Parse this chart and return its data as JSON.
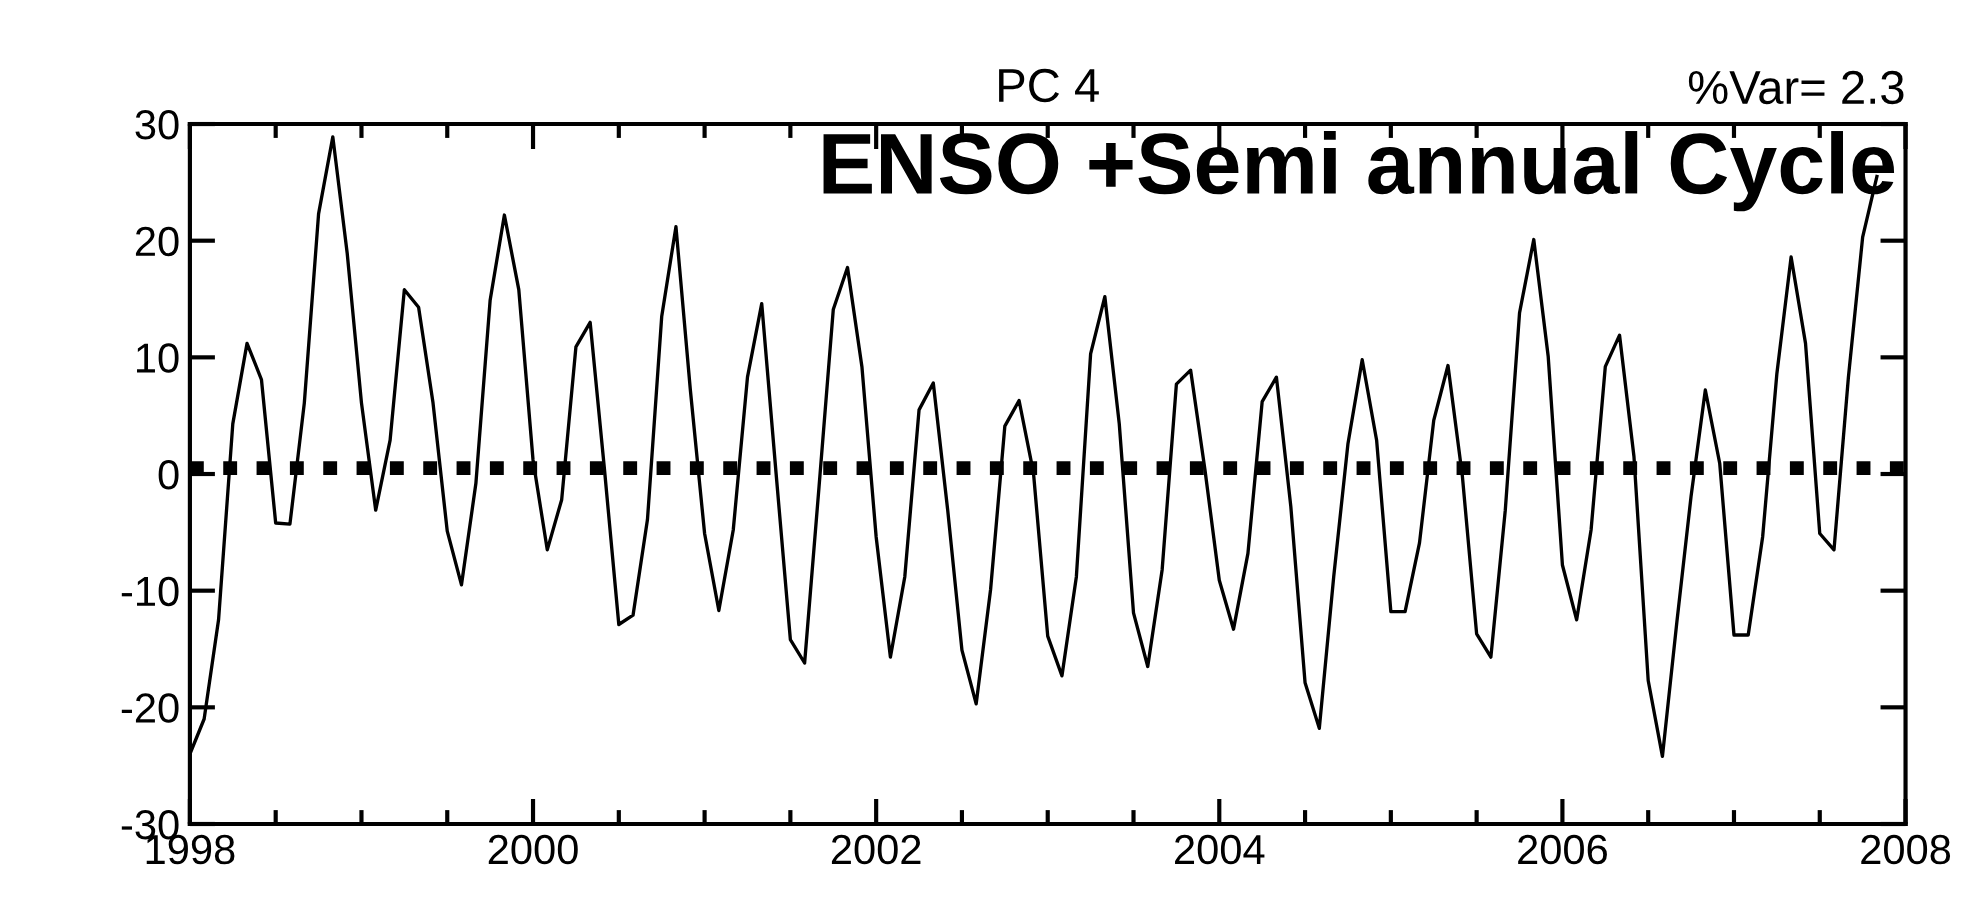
{
  "chart_data": {
    "type": "line",
    "title": "PC 4",
    "annotations": [
      "%Var= 2.3",
      "ENSO +Semi annual Cycle"
    ],
    "x": [
      1998.0,
      1998.083,
      1998.167,
      1998.25,
      1998.333,
      1998.417,
      1998.5,
      1998.583,
      1998.667,
      1998.75,
      1998.833,
      1998.917,
      1999.0,
      1999.083,
      1999.167,
      1999.25,
      1999.333,
      1999.417,
      1999.5,
      1999.583,
      1999.667,
      1999.75,
      1999.833,
      1999.917,
      2000.0,
      2000.083,
      2000.167,
      2000.25,
      2000.333,
      2000.417,
      2000.5,
      2000.583,
      2000.667,
      2000.75,
      2000.833,
      2000.917,
      2001.0,
      2001.083,
      2001.167,
      2001.25,
      2001.333,
      2001.417,
      2001.5,
      2001.583,
      2001.667,
      2001.75,
      2001.833,
      2001.917,
      2002.0,
      2002.083,
      2002.167,
      2002.25,
      2002.333,
      2002.417,
      2002.5,
      2002.583,
      2002.667,
      2002.75,
      2002.833,
      2002.917,
      2003.0,
      2003.083,
      2003.167,
      2003.25,
      2003.333,
      2003.417,
      2003.5,
      2003.583,
      2003.667,
      2003.75,
      2003.833,
      2003.917,
      2004.0,
      2004.083,
      2004.167,
      2004.25,
      2004.333,
      2004.417,
      2004.5,
      2004.583,
      2004.667,
      2004.75,
      2004.833,
      2004.917,
      2005.0,
      2005.083,
      2005.167,
      2005.25,
      2005.333,
      2005.417,
      2005.5,
      2005.583,
      2005.667,
      2005.75,
      2005.833,
      2005.917,
      2006.0,
      2006.083,
      2006.167,
      2006.25,
      2006.333,
      2006.417,
      2006.5,
      2006.583,
      2006.667,
      2006.75,
      2006.833,
      2006.917,
      2007.0,
      2007.083,
      2007.167,
      2007.25,
      2007.333,
      2007.417,
      2007.5,
      2007.583,
      2007.667,
      2007.75,
      2007.833
    ],
    "series": [
      {
        "color": "#000000",
        "values": [
          -24,
          -21,
          -12.5,
          4.3,
          11.2,
          8.1,
          -4.2,
          -4.3,
          6.1,
          22.3,
          28.9,
          18.9,
          6.1,
          -3.1,
          2.9,
          15.8,
          14.3,
          6.1,
          -4.9,
          -9.5,
          -0.8,
          14.9,
          22.2,
          15.8,
          1.2,
          -6.5,
          -2.2,
          10.9,
          13,
          0.3,
          -12.9,
          -12.1,
          -3.9,
          13.5,
          21.2,
          7.2,
          -5.1,
          -11.7,
          -4.8,
          8.3,
          14.6,
          0,
          -14.2,
          -16.2,
          -1.1,
          14.1,
          17.7,
          9.2,
          -5.4,
          -15.7,
          -8.8,
          5.5,
          7.8,
          -3.1,
          -15.1,
          -19.7,
          -9.9,
          4.1,
          6.3,
          0.1,
          -13.9,
          -17.3,
          -8.8,
          10.3,
          15.2,
          4.3,
          -11.9,
          -16.5,
          -8.2,
          7.7,
          8.9,
          0.3,
          -9.1,
          -13.3,
          -6.8,
          6.2,
          8.3,
          -2.8,
          -17.9,
          -21.8,
          -8.8,
          2.6,
          9.8,
          2.9,
          -11.8,
          -11.8,
          -5.9,
          4.6,
          9.3,
          -0.2,
          -13.7,
          -15.7,
          -3.1,
          13.8,
          20.1,
          10.1,
          -7.8,
          -12.5,
          -4.8,
          9.2,
          11.9,
          1.5,
          -17.7,
          -24.2,
          -12.7,
          -1.9,
          7.2,
          0.9,
          -13.8,
          -13.8,
          -5.4,
          8.6,
          18.6,
          11.2,
          -5.1,
          -6.5,
          8.3,
          20.3,
          25.5
        ]
      }
    ],
    "xlim": [
      1998,
      2008
    ],
    "xticks": [
      1998,
      {
        "value": 1998.5,
        "label": null
      },
      {
        "value": 1999,
        "label": null
      },
      {
        "value": 1999.5,
        "label": null
      },
      2000,
      {
        "value": 2000.5,
        "label": null
      },
      {
        "value": 2001,
        "label": null
      },
      {
        "value": 2001.5,
        "label": null
      },
      2002,
      {
        "value": 2002.5,
        "label": null
      },
      {
        "value": 2003,
        "label": null
      },
      {
        "value": 2003.5,
        "label": null
      },
      2004,
      {
        "value": 2004.5,
        "label": null
      },
      {
        "value": 2005,
        "label": null
      },
      {
        "value": 2005.5,
        "label": null
      },
      2006,
      {
        "value": 2006.5,
        "label": null
      },
      {
        "value": 2007,
        "label": null
      },
      {
        "value": 2007.5,
        "label": null
      },
      2008
    ],
    "ylim": [
      -30,
      30
    ],
    "yticks": [
      -30,
      -20,
      -10,
      0,
      10,
      20,
      30
    ],
    "ref_lines": [
      {
        "axis": "y",
        "value": 0.5,
        "color": "#000000",
        "line_style": "dotted"
      }
    ],
    "line_style": "solid",
    "marker": "none",
    "grid": false,
    "legend": false
  }
}
